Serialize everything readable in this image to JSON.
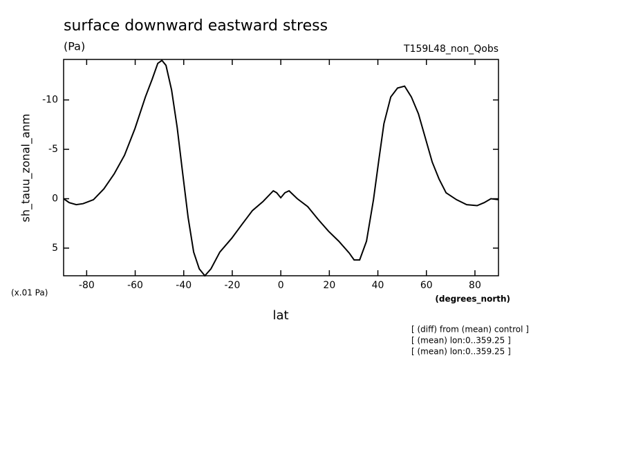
{
  "chart_data": {
    "type": "line",
    "title": "surface downward eastward stress",
    "units": "(Pa)",
    "subtitle": "T159L48_non_Qobs",
    "y_label": "sh_tauu_zonal_anm",
    "y_scale_note": "(x.01 Pa)",
    "x_units": "(degrees_north)",
    "x_label": "lat",
    "notes": [
      "[ (diff) from (mean) control ]",
      "[ (mean) lon:0..359.25 ]",
      "[ (mean) lon:0..359.25 ]"
    ],
    "xlim": [
      -89.5,
      89.7
    ],
    "ylim": [
      7.8,
      -14.1
    ],
    "xticks": [
      -80,
      -60,
      -40,
      -20,
      0,
      20,
      40,
      60,
      80
    ],
    "yticks": [
      -10,
      -5,
      0,
      5
    ],
    "series": [
      {
        "color": "#000000",
        "x": [
          -89.5,
          -87.2,
          -84.3,
          -81.5,
          -77.2,
          -72.9,
          -68.7,
          -64.4,
          -60.1,
          -55.8,
          -53,
          -50.7,
          -49,
          -47.3,
          -45,
          -42.7,
          -40.5,
          -38.2,
          -35.9,
          -33.6,
          -31.3,
          -28.8,
          -25.1,
          -20.2,
          -16,
          -11.7,
          -7.4,
          -3.1,
          -1.7,
          0,
          1.7,
          3.4,
          6.8,
          11.1,
          15.4,
          19.7,
          23.9,
          28.2,
          30.2,
          32.5,
          35.3,
          38.2,
          40.5,
          42.5,
          45.3,
          48.1,
          51,
          53.8,
          56.7,
          59.5,
          62.4,
          65.2,
          68.1,
          72.4,
          76.6,
          80.9,
          83.8,
          86.6,
          89.7
        ],
        "values": [
          0,
          0.4,
          0.6,
          0.5,
          0.1,
          -1.0,
          -2.5,
          -4.4,
          -7.1,
          -10.3,
          -12.1,
          -13.7,
          -14.0,
          -13.5,
          -11,
          -7.2,
          -2.7,
          1.9,
          5.4,
          7.1,
          7.8,
          7.1,
          5.4,
          4.0,
          2.6,
          1.2,
          0.3,
          -0.8,
          -0.6,
          -0.1,
          -0.6,
          -0.8,
          0,
          0.8,
          2.1,
          3.3,
          4.3,
          5.5,
          6.2,
          6.2,
          4.3,
          0.1,
          -4.1,
          -7.6,
          -10.3,
          -11.2,
          -11.4,
          -10.3,
          -8.6,
          -6.2,
          -3.7,
          -2.0,
          -0.6,
          0.1,
          0.6,
          0.7,
          0.4,
          0,
          0.1
        ]
      }
    ]
  }
}
